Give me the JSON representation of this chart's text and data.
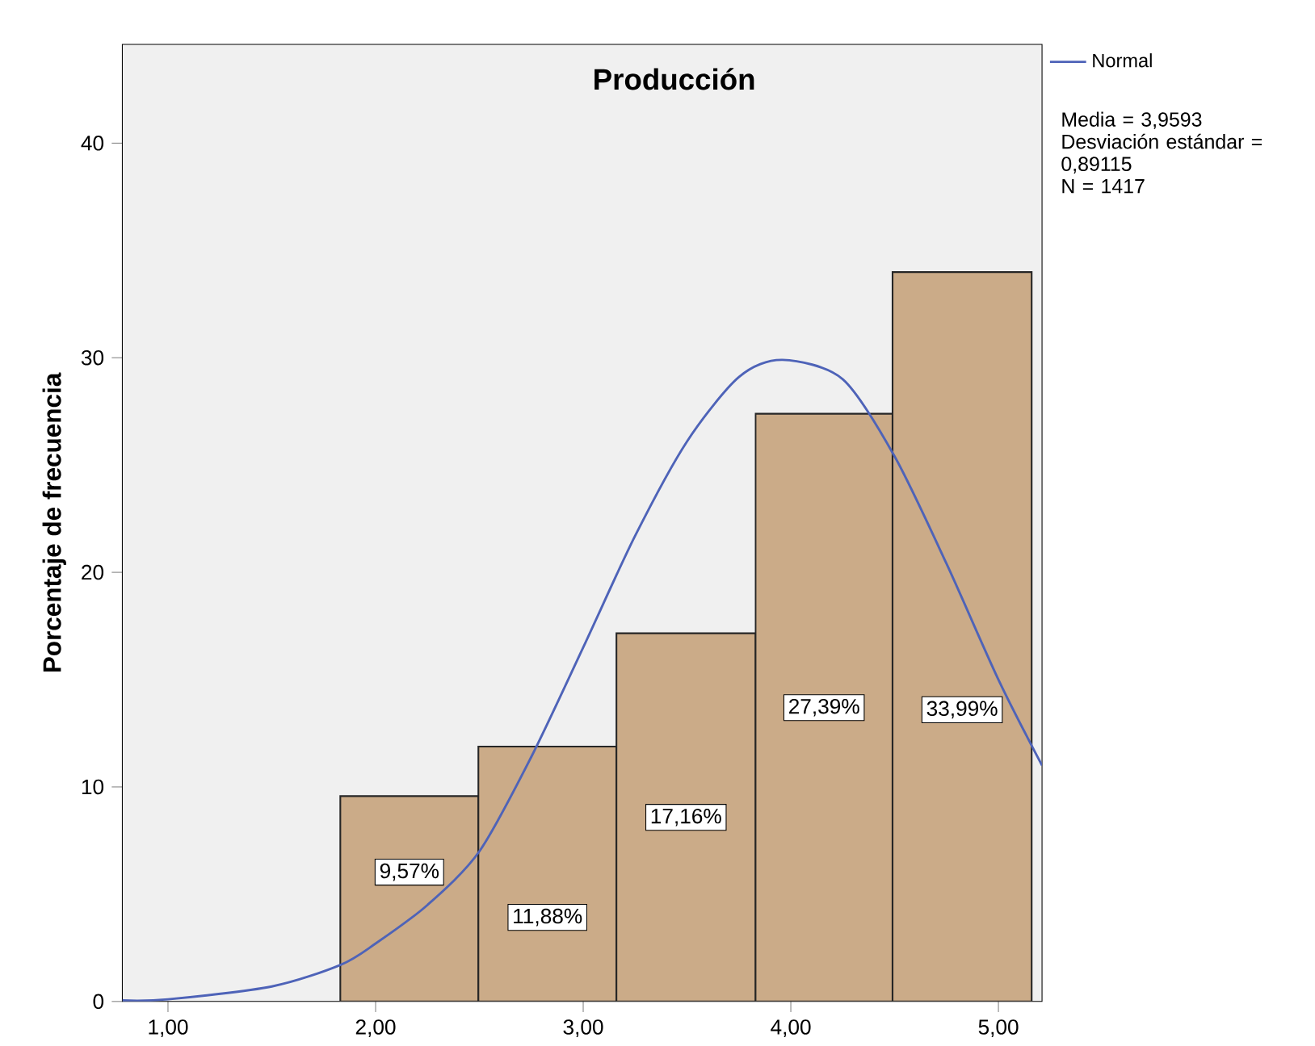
{
  "chart_data": {
    "type": "histogram",
    "title": "Producción",
    "ylabel": "Porcentaje de frecuencia",
    "bins": [
      1.83,
      2.495,
      3.16,
      3.83,
      4.49,
      5.16
    ],
    "values": [
      9.57,
      11.88,
      17.16,
      27.39,
      33.99
    ],
    "value_labels": [
      "9,57%",
      "11,88%",
      "17,16%",
      "27,39%",
      "33,99%"
    ],
    "color": "#cbab88",
    "series": [
      {
        "name": "Normal",
        "type": "line",
        "color": "#4e63b8",
        "x": [
          0.78,
          1.0,
          1.5,
          1.83,
          2.0,
          2.25,
          2.5,
          2.75,
          3.0,
          3.25,
          3.5,
          3.75,
          3.96,
          4.25,
          4.5,
          4.75,
          5.0,
          5.21
        ],
        "values": [
          0.05,
          0.1,
          0.7,
          1.7,
          2.7,
          4.5,
          7.0,
          11.4,
          16.5,
          21.7,
          26.1,
          29.1,
          29.9,
          29.0,
          25.4,
          20.4,
          15.0,
          11.0
        ]
      }
    ],
    "annotations": [
      "Media = 3,9593",
      "Desviación estándar = 0,89115",
      "N = 1417"
    ],
    "xlim": [
      0.78,
      5.21
    ],
    "ylim": [
      0,
      44.6
    ],
    "xticks": [
      {
        "value": 1,
        "label": "1,00"
      },
      {
        "value": 2,
        "label": "2,00"
      },
      {
        "value": 3,
        "label": "3,00"
      },
      {
        "value": 4,
        "label": "4,00"
      },
      {
        "value": 5,
        "label": "5,00"
      }
    ],
    "yticks": [
      0,
      10,
      20,
      30,
      40
    ],
    "grid": false,
    "legend": "top right"
  }
}
